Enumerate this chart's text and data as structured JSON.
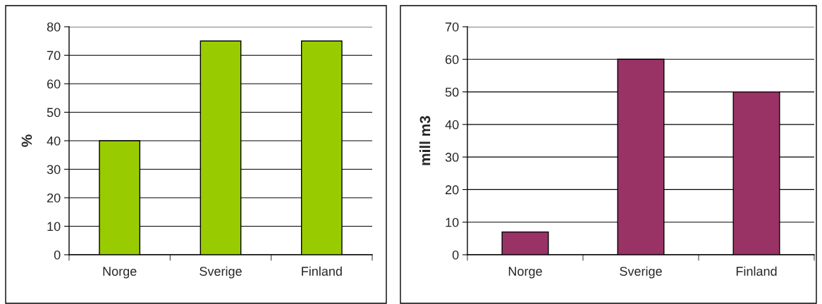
{
  "chart_data": [
    {
      "type": "bar",
      "ylabel": "%",
      "categories": [
        "Norge",
        "Sverige",
        "Finland"
      ],
      "values": [
        40,
        75,
        75
      ],
      "color": "#99cc00",
      "ylim": [
        0,
        80
      ],
      "yticks": [
        0,
        10,
        20,
        30,
        40,
        50,
        60,
        70,
        80
      ],
      "grid": "y"
    },
    {
      "type": "bar",
      "ylabel": "mill m3",
      "categories": [
        "Norge",
        "Sverige",
        "Finland"
      ],
      "values": [
        7,
        60,
        50
      ],
      "color": "#993366",
      "ylim": [
        0,
        70
      ],
      "yticks": [
        0,
        10,
        20,
        30,
        40,
        50,
        60,
        70
      ],
      "grid": "y"
    }
  ]
}
